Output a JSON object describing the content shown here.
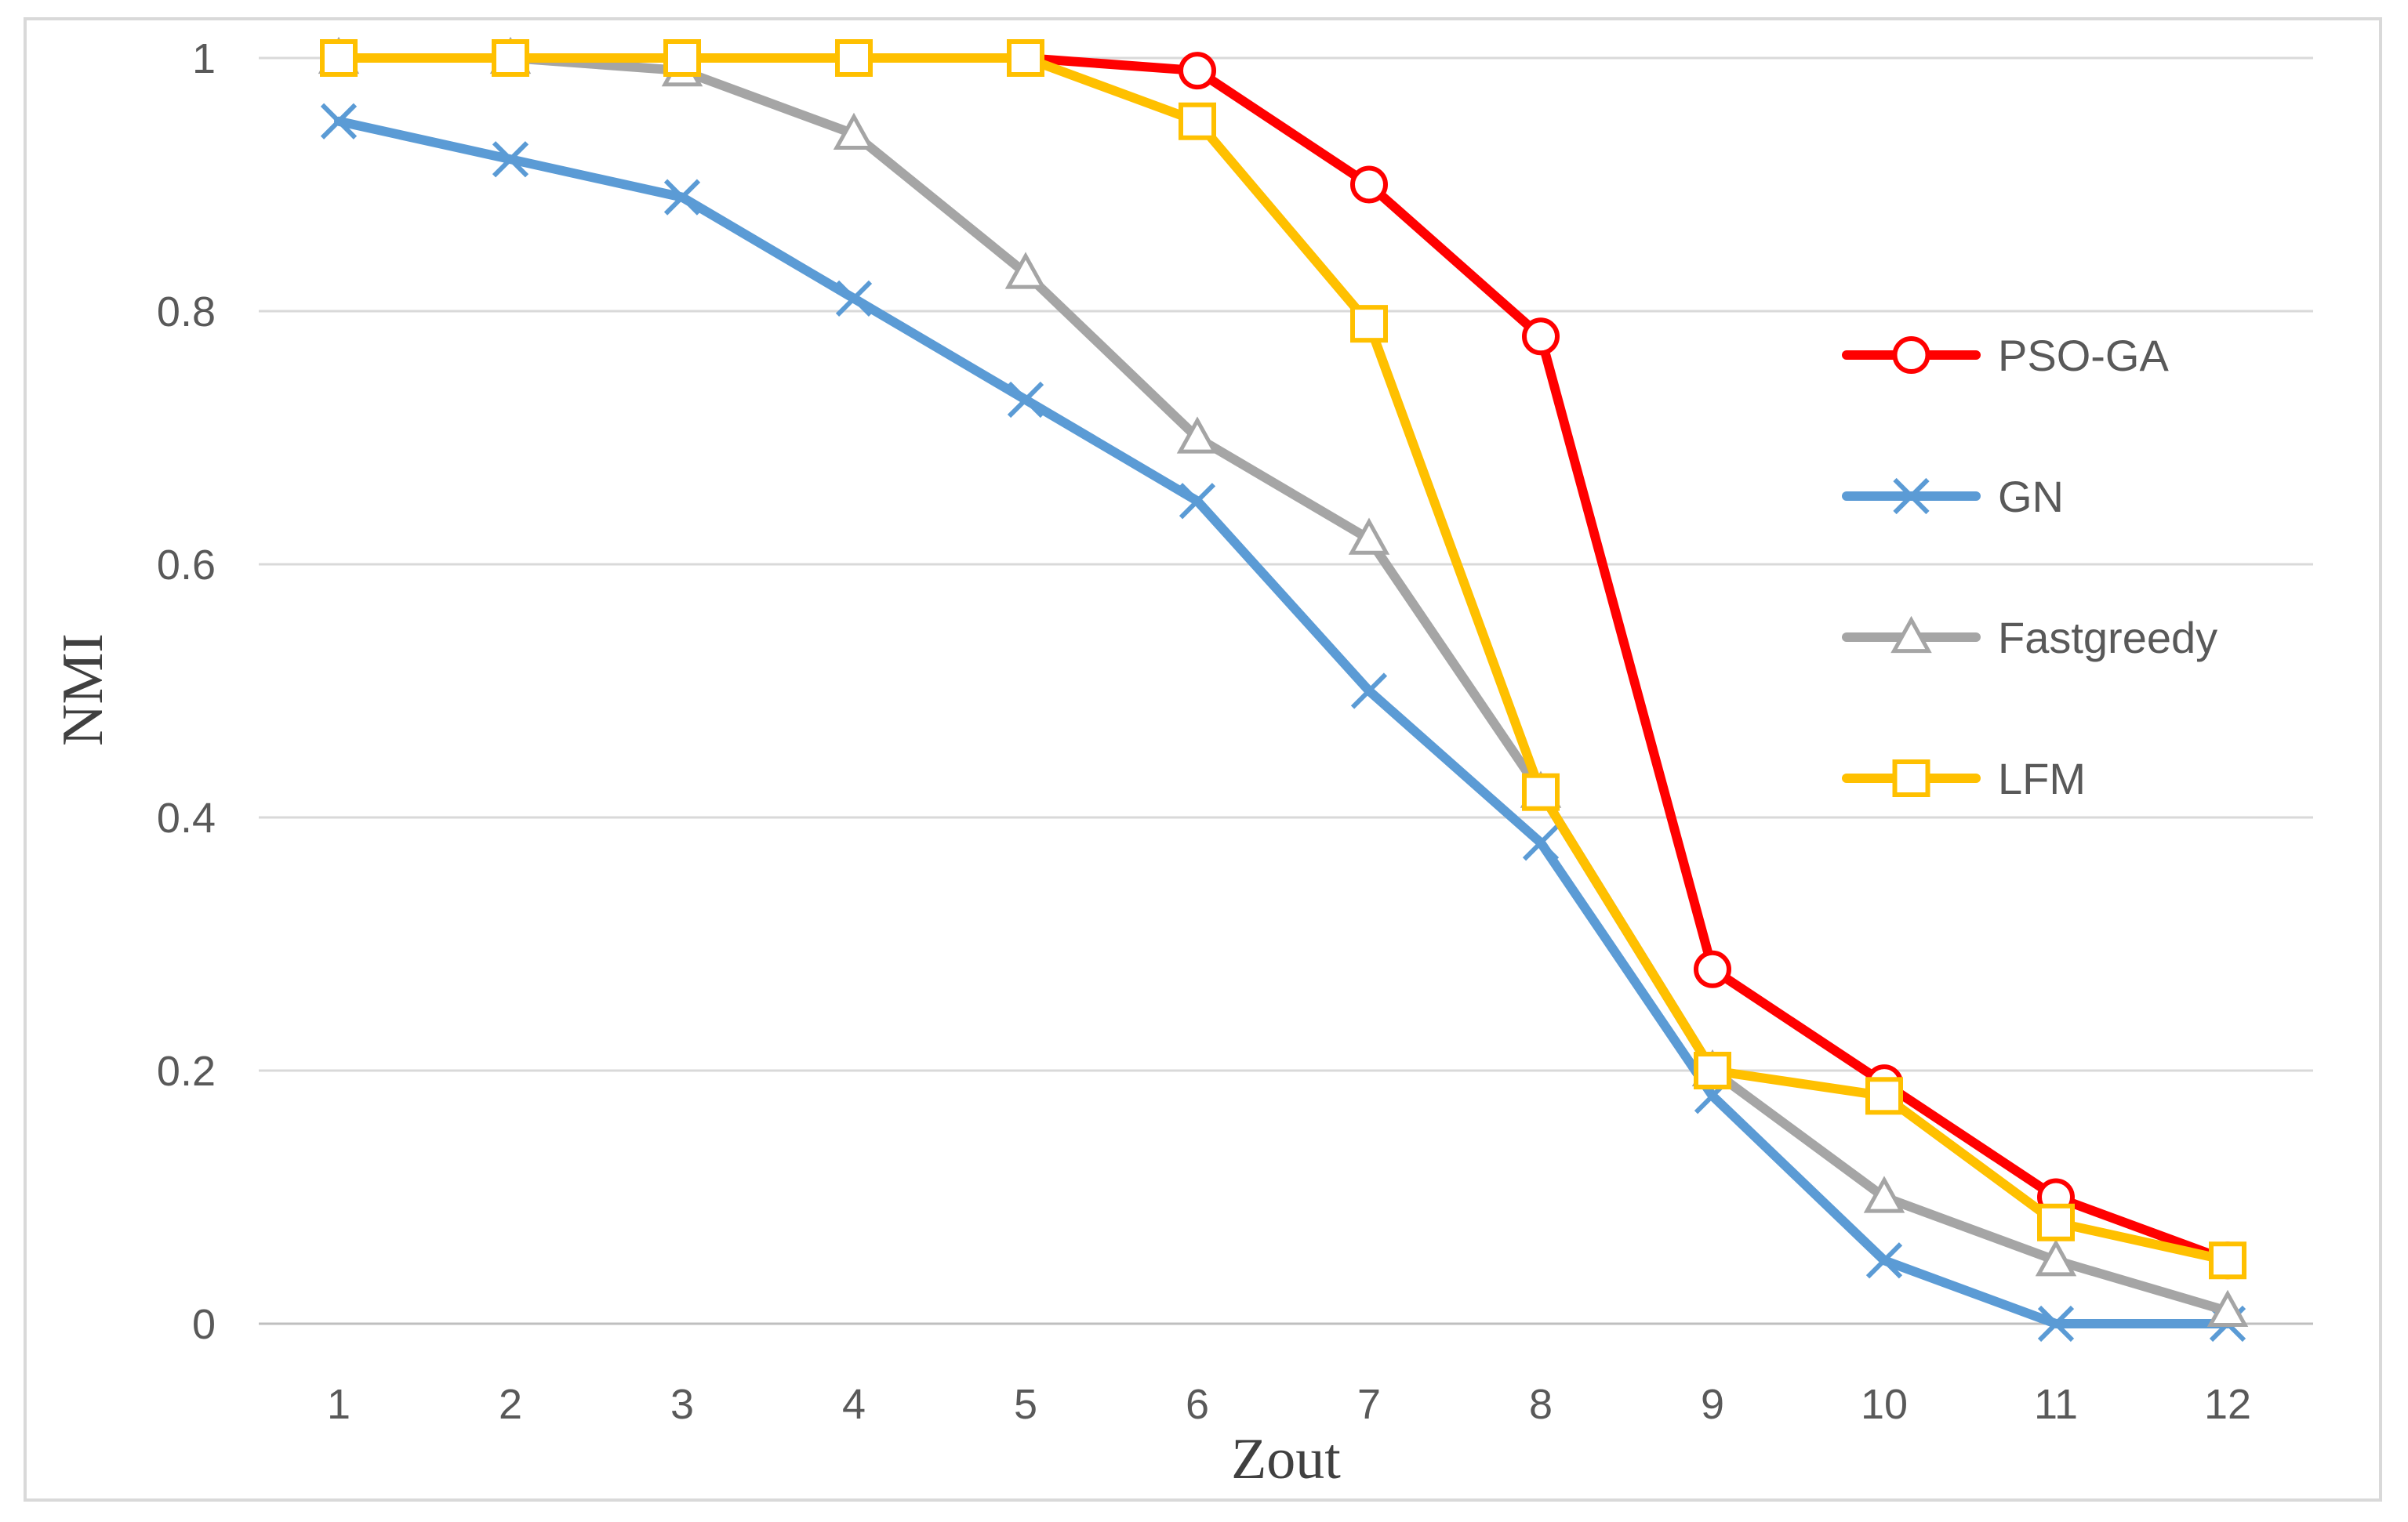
{
  "chart_data": {
    "type": "line",
    "title": "",
    "xlabel": "Zout",
    "ylabel": "NMI",
    "x": [
      1,
      2,
      3,
      4,
      5,
      6,
      7,
      8,
      9,
      10,
      11,
      12
    ],
    "ylim": [
      0,
      1
    ],
    "yticks": [
      "0",
      "0.2",
      "0.4",
      "0.6",
      "0.8",
      "1"
    ],
    "grid": true,
    "legend_position": "right",
    "series": [
      {
        "name": "PSO-GA",
        "color": "#ff0000",
        "marker": "circle",
        "values": [
          1,
          1,
          1,
          1,
          1,
          0.99,
          0.9,
          0.78,
          0.28,
          0.19,
          0.1,
          0.05
        ]
      },
      {
        "name": "GN",
        "color": "#5b9bd5",
        "marker": "x",
        "values": [
          0.95,
          0.92,
          0.89,
          0.81,
          0.73,
          0.65,
          0.5,
          0.38,
          0.18,
          0.05,
          0.0,
          0.0
        ]
      },
      {
        "name": "Fastgreedy",
        "color": "#a5a5a5",
        "marker": "triangle",
        "values": [
          1,
          1,
          0.99,
          0.94,
          0.83,
          0.7,
          0.62,
          0.42,
          0.2,
          0.1,
          0.05,
          0.01
        ]
      },
      {
        "name": "LFM",
        "color": "#ffc000",
        "marker": "square",
        "values": [
          1,
          1,
          1,
          1,
          1,
          0.95,
          0.79,
          0.42,
          0.2,
          0.18,
          0.08,
          0.05
        ]
      }
    ]
  }
}
